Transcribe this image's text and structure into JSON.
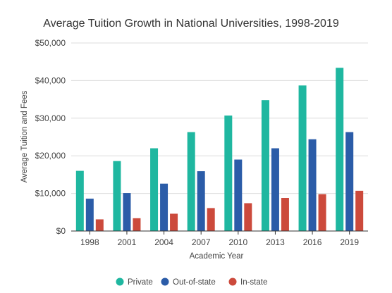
{
  "chart_data": {
    "type": "bar",
    "title": "Average Tuition Growth in National Universities, 1998-2019",
    "xlabel": "Academic Year",
    "ylabel": "Average Tuition and Fees",
    "categories": [
      "1998",
      "2001",
      "2004",
      "2007",
      "2010",
      "2013",
      "2016",
      "2019"
    ],
    "series": [
      {
        "name": "Private",
        "color": "#1fb7a0",
        "values": [
          16000,
          18600,
          22000,
          26300,
          30700,
          34800,
          38700,
          43400
        ]
      },
      {
        "name": "Out-of-state",
        "color": "#2b5ca8",
        "values": [
          8600,
          10100,
          12600,
          15900,
          19000,
          22000,
          24400,
          26300
        ]
      },
      {
        "name": "In-state",
        "color": "#cc4a3c",
        "values": [
          3100,
          3400,
          4600,
          6100,
          7400,
          8800,
          9800,
          10700
        ]
      }
    ],
    "ylim": [
      0,
      50000
    ],
    "yticks": [
      {
        "value": 0,
        "label": "$0"
      },
      {
        "value": 10000,
        "label": "$10,000"
      },
      {
        "value": 20000,
        "label": "$20,000"
      },
      {
        "value": 30000,
        "label": "$30,000"
      },
      {
        "value": 40000,
        "label": "$40,000"
      },
      {
        "value": 50000,
        "label": "$50,000"
      }
    ],
    "grid": true,
    "legend_position": "bottom"
  }
}
